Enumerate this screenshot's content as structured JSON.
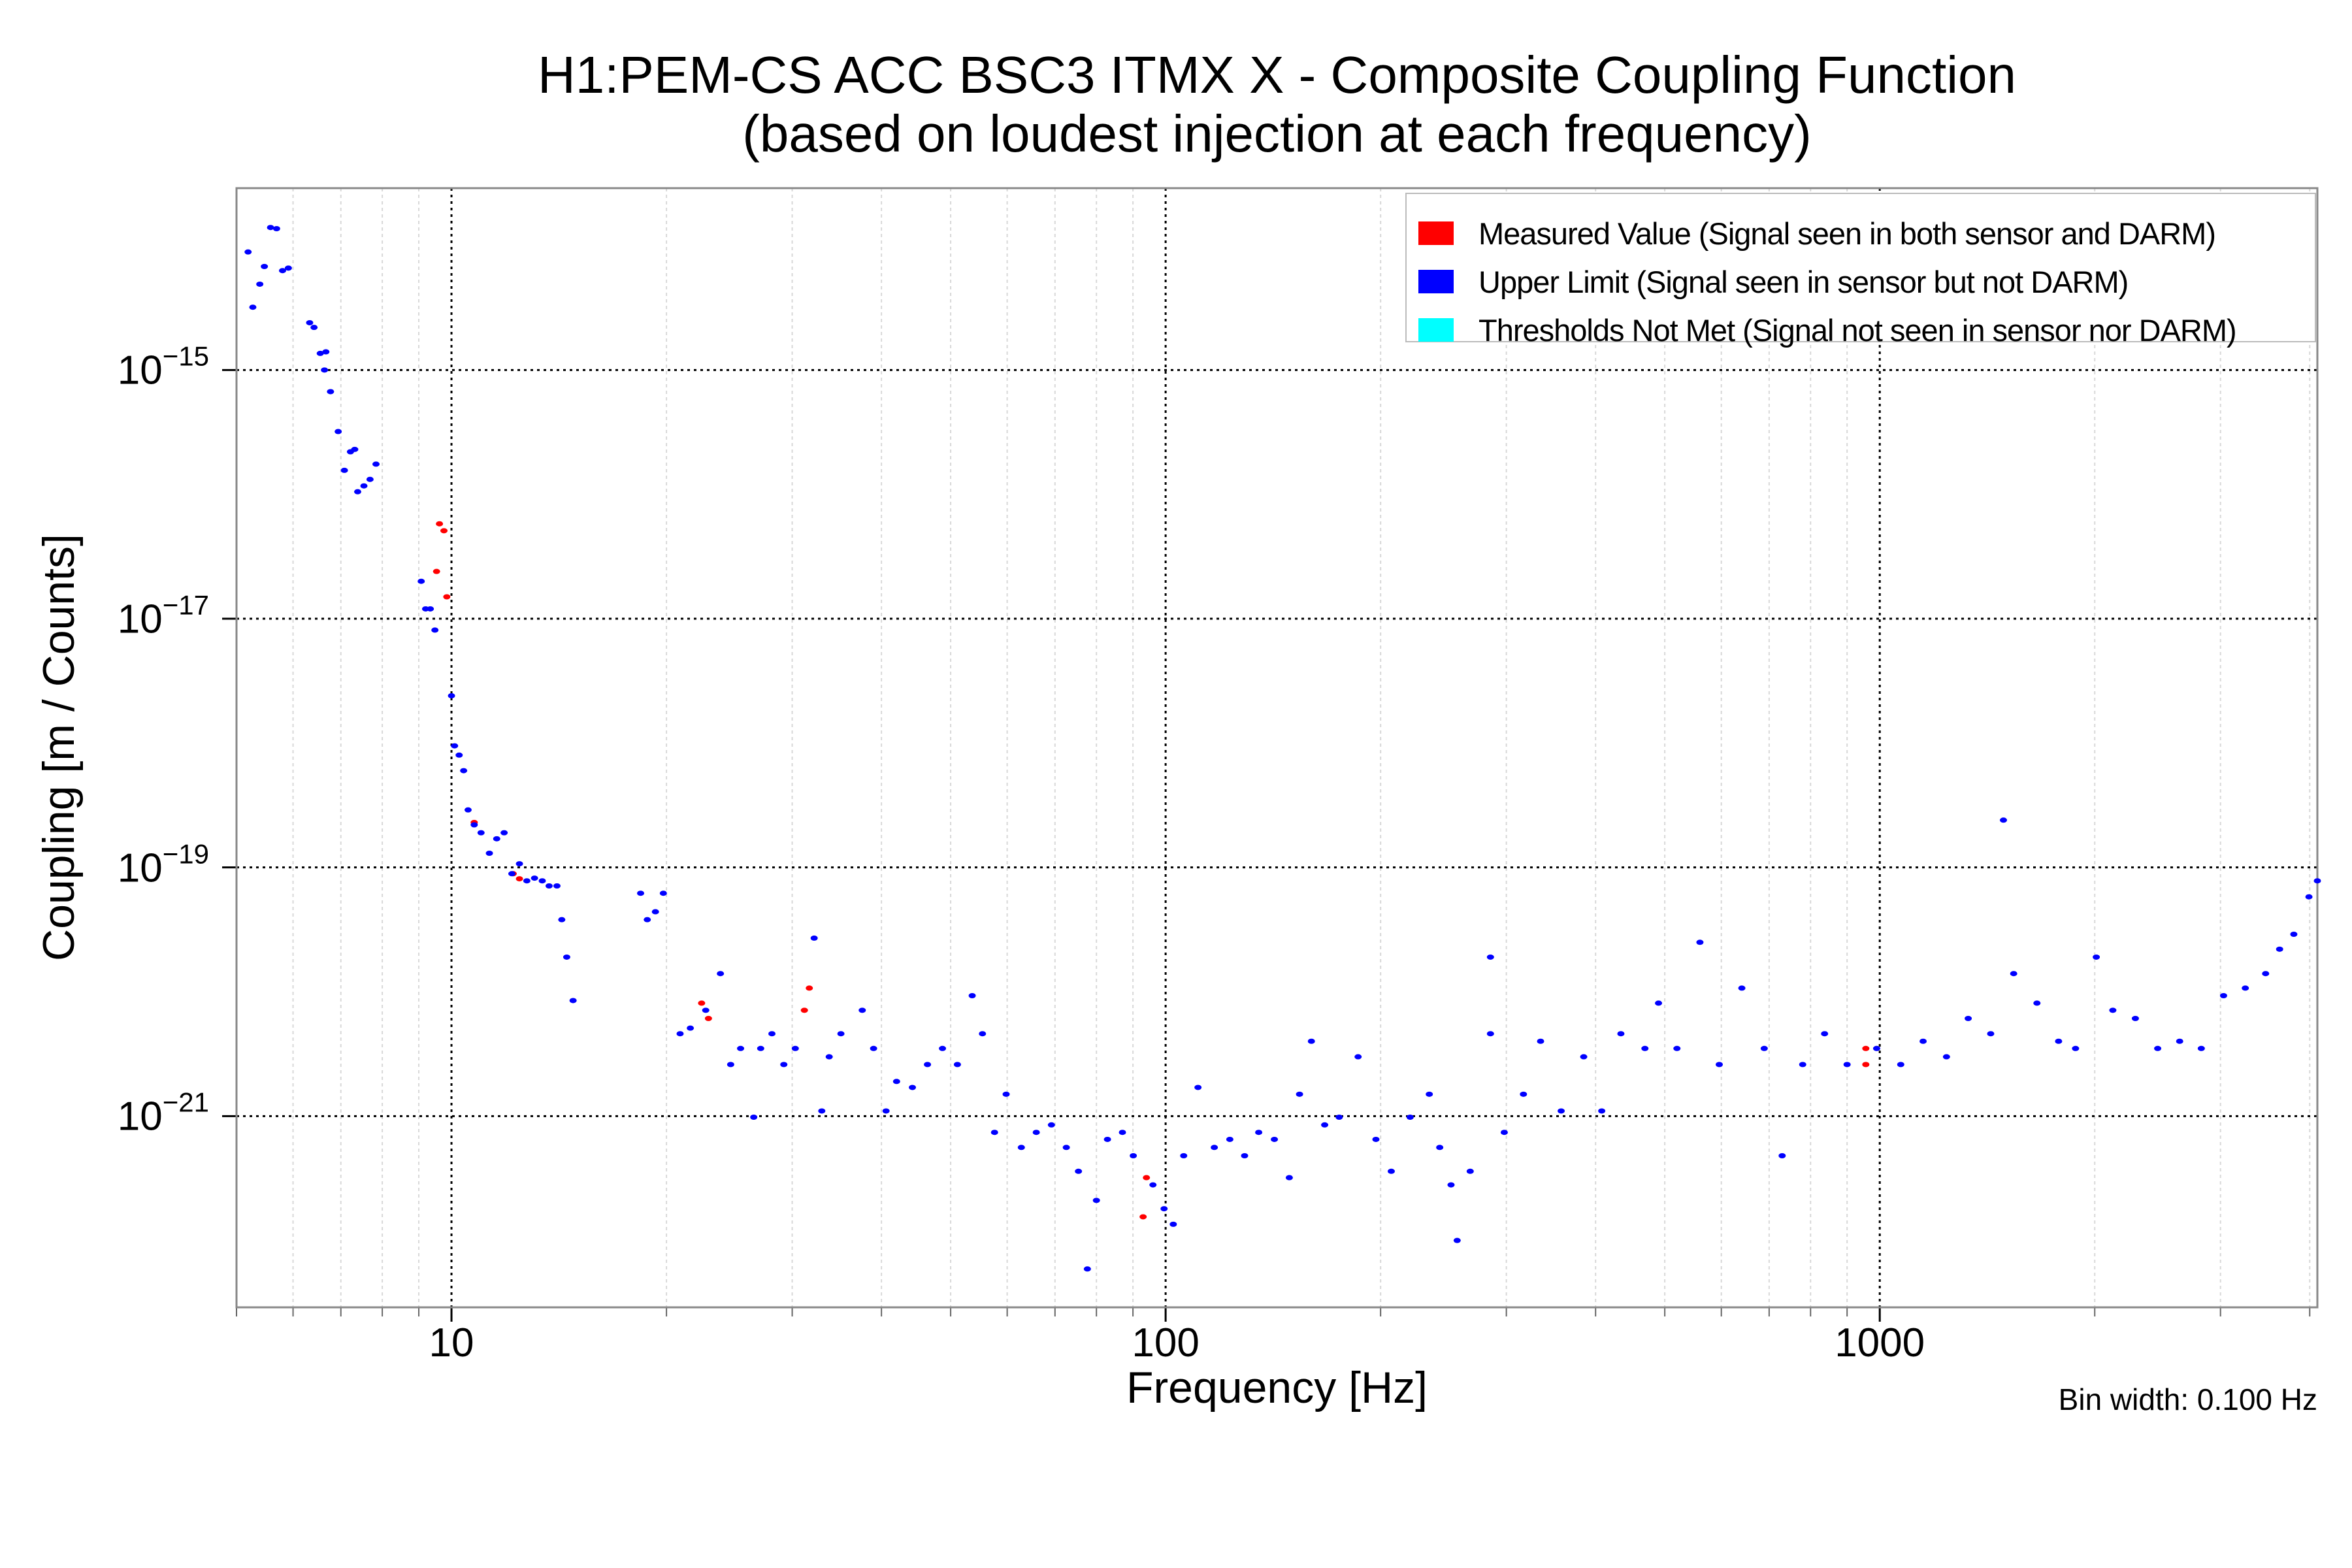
{
  "chart_data": {
    "type": "scatter",
    "title": "H1:PEM-CS ACC BSC3 ITMX X - Composite Coupling Function",
    "subtitle": "(based on loudest injection at each frequency)",
    "xlabel": "Frequency [Hz]",
    "ylabel": "Coupling [m / Counts]",
    "xscale": "log",
    "yscale": "log",
    "xlim": [
      5,
      4100
    ],
    "ylim": [
      2.9e-23,
      2.9e-14
    ],
    "x_ticks": [
      {
        "value": 10,
        "label": "10"
      },
      {
        "value": 100,
        "label": "100"
      },
      {
        "value": 1000,
        "label": "1000"
      }
    ],
    "y_ticks": [
      {
        "value": 1e-15,
        "base": "10",
        "exp": "−15"
      },
      {
        "value": 1e-17,
        "base": "10",
        "exp": "−17"
      },
      {
        "value": 1e-19,
        "base": "10",
        "exp": "−19"
      },
      {
        "value": 1e-21,
        "base": "10",
        "exp": "−21"
      }
    ],
    "grid": true,
    "legend_position": "top-right",
    "annotation": "Bin width: 0.100 Hz",
    "series": [
      {
        "name": "Measured Value (Signal seen in both sensor and DARM)",
        "color": "#ff0000",
        "points": [
          [
            9.62,
            5.8e-17
          ],
          [
            9.76,
            5.1e-17
          ],
          [
            9.53,
            2.4e-17
          ],
          [
            9.85,
            1.5e-17
          ],
          [
            10.76,
            2.3e-19
          ],
          [
            12.2,
            8.9e-20
          ],
          [
            12.45,
            8.1e-20
          ],
          [
            22.4,
            8.1e-21
          ],
          [
            22.9,
            6.1e-21
          ],
          [
            31.2,
            7.1e-21
          ],
          [
            31.7,
            1.07e-20
          ],
          [
            94,
            3.2e-22
          ],
          [
            93,
            1.55e-22
          ],
          [
            956,
            3.5e-21
          ],
          [
            956,
            2.6e-21
          ]
        ]
      },
      {
        "name": "Upper Limit (Signal seen in sensor but not DARM)",
        "color": "#0000ff",
        "points": [
          [
            5.19,
            8.9e-15
          ],
          [
            5.27,
            3.2e-15
          ],
          [
            5.39,
            4.9e-15
          ],
          [
            5.47,
            6.8e-15
          ],
          [
            5.58,
            1.4e-14
          ],
          [
            5.69,
            1.37e-14
          ],
          [
            5.8,
            6.3e-15
          ],
          [
            5.91,
            6.6e-15
          ],
          [
            6.33,
            2.4e-15
          ],
          [
            6.42,
            2.2e-15
          ],
          [
            6.55,
            1.36e-15
          ],
          [
            6.67,
            1.4e-15
          ],
          [
            6.64,
            1e-15
          ],
          [
            6.77,
            6.7e-16
          ],
          [
            6.94,
            3.2e-16
          ],
          [
            7.08,
            1.56e-16
          ],
          [
            7.22,
            2.2e-16
          ],
          [
            7.32,
            2.3e-16
          ],
          [
            7.39,
            1.05e-16
          ],
          [
            7.54,
            1.17e-16
          ],
          [
            7.69,
            1.32e-16
          ],
          [
            7.84,
            1.75e-16
          ],
          [
            9.07,
            2e-17
          ],
          [
            9.2,
            1.2e-17
          ],
          [
            9.34,
            1.2e-17
          ],
          [
            9.48,
            8.1e-18
          ],
          [
            10,
            2.4e-18
          ],
          [
            10.1,
            9.5e-19
          ],
          [
            10.25,
            8e-19
          ],
          [
            10.4,
            6e-19
          ],
          [
            10.55,
            2.9e-19
          ],
          [
            10.76,
            2.2e-19
          ],
          [
            11.0,
            1.9e-19
          ],
          [
            11.3,
            1.3e-19
          ],
          [
            11.57,
            1.7e-19
          ],
          [
            11.85,
            1.9e-19
          ],
          [
            12.15,
            8.9e-20
          ],
          [
            12.45,
            1.07e-19
          ],
          [
            12.75,
            7.8e-20
          ],
          [
            13.07,
            8.2e-20
          ],
          [
            13.4,
            7.8e-20
          ],
          [
            13.7,
            7.1e-20
          ],
          [
            14.05,
            7.1e-20
          ],
          [
            14.27,
            3.8e-20
          ],
          [
            14.5,
            1.9e-20
          ],
          [
            14.8,
            8.5e-21
          ],
          [
            18.4,
            6.2e-20
          ],
          [
            18.8,
            3.8e-20
          ],
          [
            19.3,
            4.4e-20
          ],
          [
            19.8,
            6.2e-20
          ],
          [
            20.9,
            4.6e-21
          ],
          [
            21.6,
            5.1e-21
          ],
          [
            22.7,
            7.1e-21
          ],
          [
            23.8,
            1.4e-20
          ],
          [
            24.6,
            2.6e-21
          ],
          [
            25.4,
            3.5e-21
          ],
          [
            26.5,
            9.8e-22
          ],
          [
            27.1,
            3.5e-21
          ],
          [
            28.1,
            4.6e-21
          ],
          [
            29.2,
            2.6e-21
          ],
          [
            30.3,
            3.5e-21
          ],
          [
            32.2,
            2.7e-20
          ],
          [
            33.0,
            1.1e-21
          ],
          [
            33.8,
            3e-21
          ],
          [
            35.1,
            4.6e-21
          ],
          [
            37.6,
            7.1e-21
          ],
          [
            39.0,
            3.5e-21
          ],
          [
            40.6,
            1.1e-21
          ],
          [
            42.0,
            1.9e-21
          ],
          [
            44.2,
            1.7e-21
          ],
          [
            46.4,
            2.6e-21
          ],
          [
            48.7,
            3.5e-21
          ],
          [
            51.1,
            2.6e-21
          ],
          [
            53.6,
            9.3e-21
          ],
          [
            55.4,
            4.6e-21
          ],
          [
            57.6,
            7.4e-22
          ],
          [
            59.8,
            1.5e-21
          ],
          [
            62.8,
            5.6e-22
          ],
          [
            65.9,
            7.4e-22
          ],
          [
            69.2,
            8.5e-22
          ],
          [
            72.6,
            5.6e-22
          ],
          [
            75.5,
            3.6e-22
          ],
          [
            77.7,
            5.9e-23
          ],
          [
            80.0,
            2.1e-22
          ],
          [
            82.9,
            6.5e-22
          ],
          [
            87.0,
            7.4e-22
          ],
          [
            90.1,
            4.8e-22
          ],
          [
            96.0,
            2.8e-22
          ],
          [
            99.5,
            1.8e-22
          ],
          [
            102.5,
            1.35e-22
          ],
          [
            106,
            4.8e-22
          ],
          [
            111,
            1.7e-21
          ],
          [
            117,
            5.6e-22
          ],
          [
            123,
            6.5e-22
          ],
          [
            129,
            4.8e-22
          ],
          [
            135,
            7.4e-22
          ],
          [
            142,
            6.5e-22
          ],
          [
            149,
            3.2e-22
          ],
          [
            154,
            1.5e-21
          ],
          [
            160,
            4e-21
          ],
          [
            167,
            8.5e-22
          ],
          [
            175,
            9.8e-22
          ],
          [
            186,
            3e-21
          ],
          [
            197,
            6.5e-22
          ],
          [
            207,
            3.6e-22
          ],
          [
            220,
            9.8e-22
          ],
          [
            234,
            1.5e-21
          ],
          [
            242,
            5.6e-22
          ],
          [
            251,
            2.8e-22
          ],
          [
            256,
            1e-22
          ],
          [
            267,
            3.6e-22
          ],
          [
            285,
            1.9e-20
          ],
          [
            285,
            4.6e-21
          ],
          [
            298,
            7.4e-22
          ],
          [
            317,
            1.5e-21
          ],
          [
            335,
            4e-21
          ],
          [
            358,
            1.1e-21
          ],
          [
            385,
            3e-21
          ],
          [
            408,
            1.1e-21
          ],
          [
            434,
            4.6e-21
          ],
          [
            469,
            3.5e-21
          ],
          [
            490,
            8.1e-21
          ],
          [
            520,
            3.5e-21
          ],
          [
            560,
            2.5e-20
          ],
          [
            596,
            2.6e-21
          ],
          [
            641,
            1.07e-20
          ],
          [
            689,
            3.5e-21
          ],
          [
            730,
            4.8e-22
          ],
          [
            780,
            2.6e-21
          ],
          [
            837,
            4.6e-21
          ],
          [
            900,
            2.6e-21
          ],
          [
            990,
            3.5e-21
          ],
          [
            1070,
            2.6e-21
          ],
          [
            1150,
            4e-21
          ],
          [
            1240,
            3e-21
          ],
          [
            1330,
            6.1e-21
          ],
          [
            1430,
            4.6e-21
          ],
          [
            1490,
            2.4e-19
          ],
          [
            1540,
            1.4e-20
          ],
          [
            1660,
            8.1e-21
          ],
          [
            1780,
            4e-21
          ],
          [
            1880,
            3.5e-21
          ],
          [
            2010,
            1.9e-20
          ],
          [
            2120,
            7.1e-21
          ],
          [
            2280,
            6.1e-21
          ],
          [
            2450,
            3.5e-21
          ],
          [
            2630,
            4e-21
          ],
          [
            2820,
            3.5e-21
          ],
          [
            3030,
            9.3e-21
          ],
          [
            3250,
            1.07e-20
          ],
          [
            3470,
            1.4e-20
          ],
          [
            3630,
            2.2e-20
          ],
          [
            3800,
            2.9e-20
          ],
          [
            3990,
            5.8e-20
          ],
          [
            4100,
            7.8e-20
          ]
        ]
      },
      {
        "name": "Thresholds Not Met (Signal not seen in sensor nor DARM)",
        "color": "#00ffff",
        "points": []
      }
    ]
  }
}
